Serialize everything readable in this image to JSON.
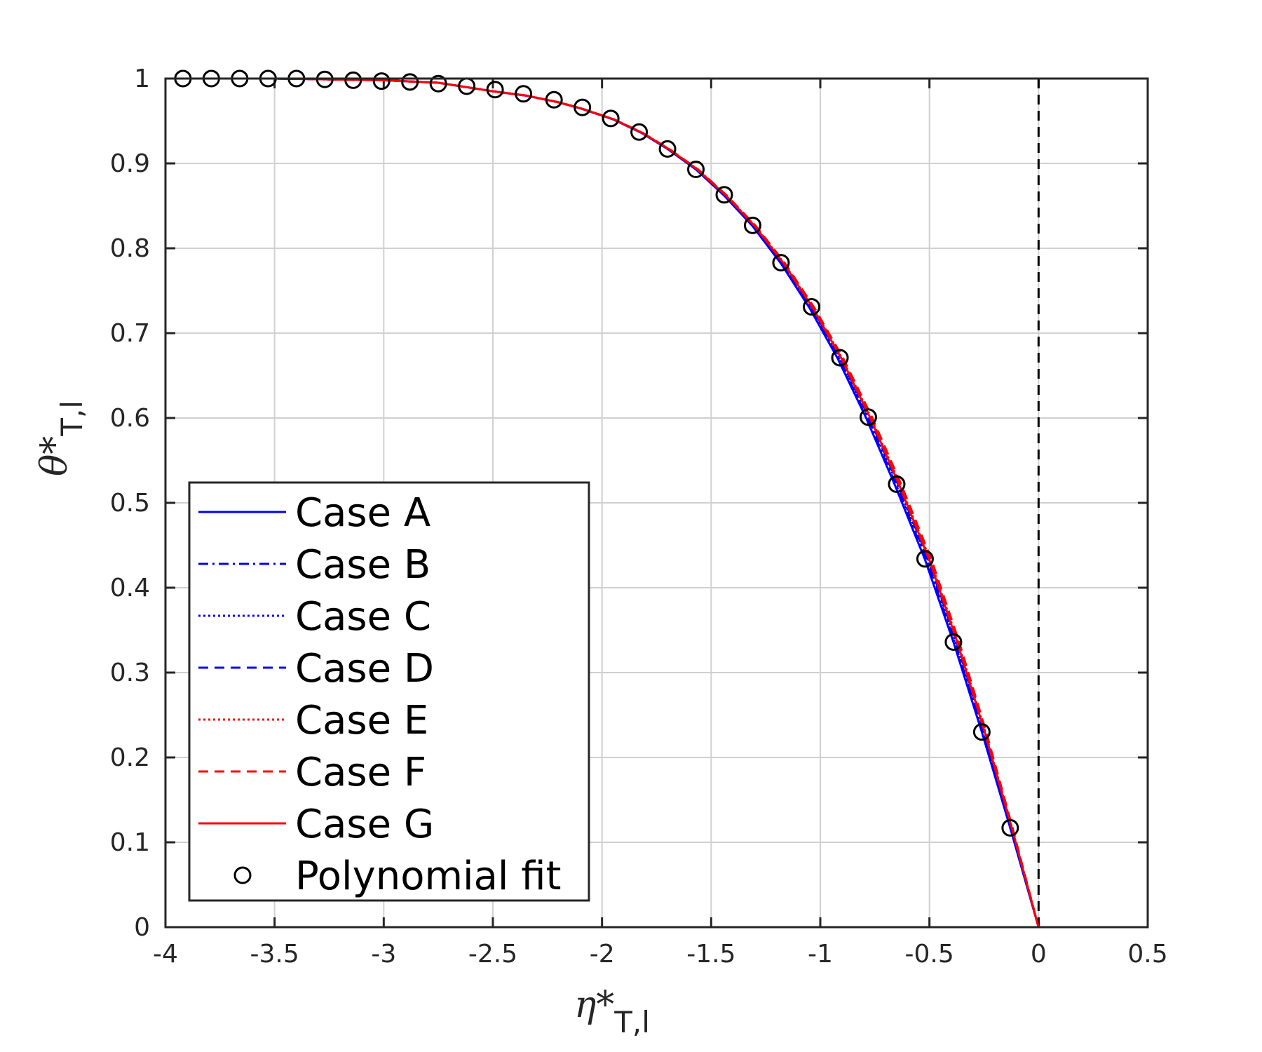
{
  "chart_data": {
    "type": "line",
    "xlabel": {
      "main": "η*",
      "sub": "T,l"
    },
    "ylabel": {
      "main": "θ*",
      "sub": "T,l"
    },
    "xlim": [
      -4,
      0.5
    ],
    "ylim": [
      0,
      1
    ],
    "xticks": [
      -4,
      -3.5,
      -3,
      -2.5,
      -2,
      -1.5,
      -1,
      -0.5,
      0,
      0.5
    ],
    "xtick_labels": [
      "-4",
      "-3.5",
      "-3",
      "-2.5",
      "-2",
      "-1.5",
      "-1",
      "-0.5",
      "0",
      "0.5"
    ],
    "yticks": [
      0,
      0.1,
      0.2,
      0.3,
      0.4,
      0.5,
      0.6,
      0.7,
      0.8,
      0.9,
      1
    ],
    "ytick_labels": [
      "0",
      "0.1",
      "0.2",
      "0.3",
      "0.4",
      "0.5",
      "0.6",
      "0.7",
      "0.8",
      "0.9",
      "1"
    ],
    "grid": true,
    "legend_position": "bottom-left",
    "reference_line": {
      "x": 0,
      "style": "dashed",
      "color": "#000000"
    },
    "series": [
      {
        "name": "Case A",
        "color": "#0000ff",
        "dash": "solid",
        "shift": 0.0
      },
      {
        "name": "Case B",
        "color": "#0000ff",
        "dash": "dashdot",
        "shift": 0.006
      },
      {
        "name": "Case C",
        "color": "#0000ff",
        "dash": "dotted",
        "shift": 0.012
      },
      {
        "name": "Case D",
        "color": "#0000ff",
        "dash": "dashed",
        "shift": 0.016
      },
      {
        "name": "Case E",
        "color": "#ff0000",
        "dash": "dotted",
        "shift": 0.024
      },
      {
        "name": "Case F",
        "color": "#ff0000",
        "dash": "dashed",
        "shift": 0.03
      },
      {
        "name": "Case G",
        "color": "#ff0000",
        "dash": "solid",
        "shift": 0.02
      }
    ],
    "curve": {
      "x": [
        -4.0,
        -3.5,
        -3.0,
        -2.75,
        -2.5,
        -2.35,
        -2.2,
        -2.1,
        -1.95,
        -1.82,
        -1.7,
        -1.57,
        -1.44,
        -1.31,
        -1.18,
        -1.05,
        -0.92,
        -0.79,
        -0.66,
        -0.52,
        -0.39,
        -0.26,
        -0.13,
        0.0
      ],
      "y": [
        1.0,
        1.0,
        0.998,
        0.995,
        0.985,
        0.98,
        0.972,
        0.965,
        0.952,
        0.936,
        0.917,
        0.893,
        0.862,
        0.826,
        0.782,
        0.73,
        0.67,
        0.6,
        0.522,
        0.433,
        0.336,
        0.23,
        0.117,
        0.0
      ]
    },
    "polynomial_fit": {
      "name": "Polynomial fit",
      "x": [
        -3.92,
        -3.79,
        -3.66,
        -3.53,
        -3.4,
        -3.27,
        -3.14,
        -3.01,
        -2.88,
        -2.75,
        -2.62,
        -2.49,
        -2.36,
        -2.22,
        -2.09,
        -1.96,
        -1.83,
        -1.7,
        -1.57,
        -1.44,
        -1.31,
        -1.18,
        -1.04,
        -0.91,
        -0.78,
        -0.65,
        -0.52,
        -0.39,
        -0.26,
        -0.13
      ],
      "y": [
        1.0,
        1.0,
        1.0,
        1.0,
        1.0,
        0.999,
        0.998,
        0.997,
        0.996,
        0.994,
        0.991,
        0.987,
        0.982,
        0.975,
        0.966,
        0.953,
        0.937,
        0.917,
        0.893,
        0.863,
        0.827,
        0.783,
        0.731,
        0.671,
        0.601,
        0.522,
        0.434,
        0.336,
        0.23,
        0.117
      ]
    }
  }
}
